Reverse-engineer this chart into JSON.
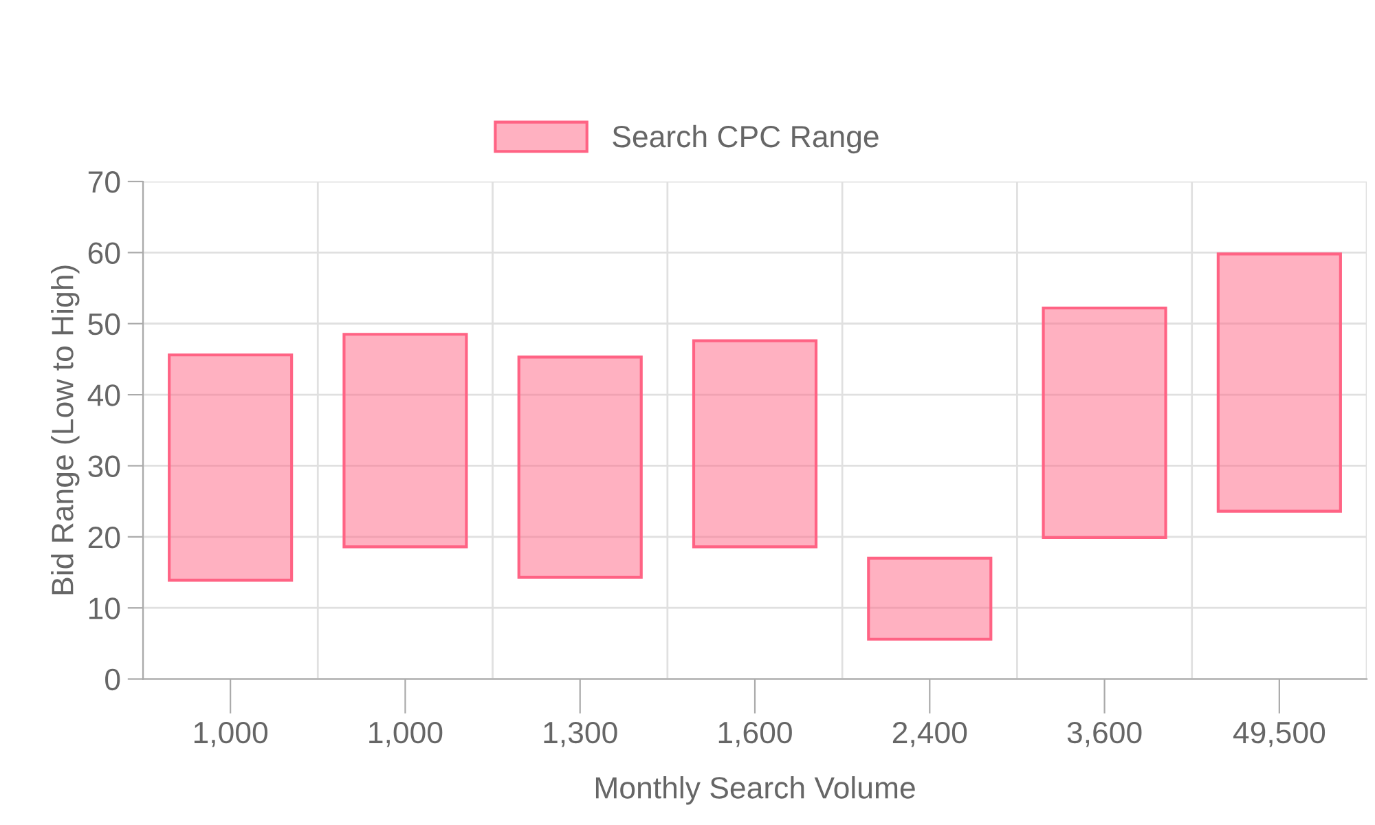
{
  "chart_data": {
    "type": "bar",
    "xlabel": "Monthly Search Volume",
    "ylabel": "Bid Range (Low to High)",
    "categories": [
      "1,000",
      "1,000",
      "1,300",
      "1,600",
      "2,400",
      "3,600",
      "49,500"
    ],
    "series": [
      {
        "name": "Search CPC Range",
        "color": "#ff6384",
        "base": [
          13.9,
          18.6,
          14.3,
          18.6,
          5.6,
          19.9,
          23.6
        ],
        "values": [
          31.7,
          29.9,
          31.0,
          29.0,
          11.4,
          32.3,
          36.2
        ]
      }
    ],
    "ylim": [
      0,
      70
    ],
    "yticks": [
      0,
      10,
      20,
      30,
      40,
      50,
      60,
      70
    ],
    "grid": true,
    "legend": "top"
  }
}
